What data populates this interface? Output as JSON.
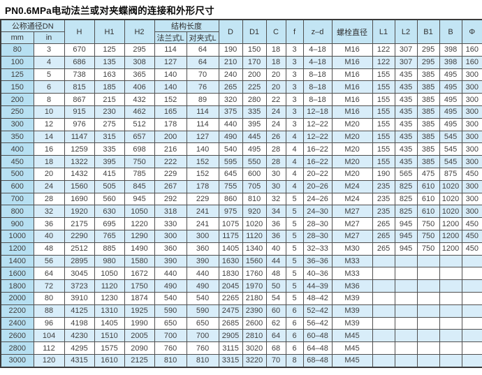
{
  "title": "PN0.6MPa电动法兰或对夹蝶阀的连接和外形尺寸",
  "colors": {
    "header_bg": "#c3e5f4",
    "dn_column_bg": "#b7e0f2",
    "stripe_row_bg": "#d8edf9",
    "border": "#4f4f4f"
  },
  "table": {
    "header_row1": [
      "公称通径DN",
      "H",
      "H1",
      "H2",
      "结构长度",
      "D",
      "D1",
      "C",
      "f",
      "z–d",
      "螺栓直径",
      "L1",
      "L2",
      "B1",
      "B",
      "Φ"
    ],
    "header_row2": [
      "mm",
      "in",
      "法兰式L",
      "对夹式L"
    ],
    "col_keys": [
      "dn-mm",
      "dn-in",
      "h",
      "h1",
      "h2",
      "l-flange",
      "l-wafer",
      "d",
      "d1",
      "c",
      "f",
      "z-d",
      "bolt-diameter",
      "l1",
      "l2",
      "b1",
      "b",
      "phi"
    ],
    "rows": [
      [
        "80",
        "3",
        "670",
        "125",
        "295",
        "114",
        "64",
        "190",
        "150",
        "18",
        "3",
        "4–18",
        "M16",
        "122",
        "307",
        "295",
        "398",
        "160"
      ],
      [
        "100",
        "4",
        "686",
        "135",
        "308",
        "127",
        "64",
        "210",
        "170",
        "18",
        "3",
        "4–18",
        "M16",
        "122",
        "307",
        "295",
        "398",
        "160"
      ],
      [
        "125",
        "5",
        "738",
        "163",
        "365",
        "140",
        "70",
        "240",
        "200",
        "20",
        "3",
        "8–18",
        "M16",
        "155",
        "435",
        "385",
        "495",
        "300"
      ],
      [
        "150",
        "6",
        "815",
        "185",
        "406",
        "140",
        "76",
        "265",
        "225",
        "20",
        "3",
        "8–18",
        "M16",
        "155",
        "435",
        "385",
        "495",
        "300"
      ],
      [
        "200",
        "8",
        "867",
        "215",
        "432",
        "152",
        "89",
        "320",
        "280",
        "22",
        "3",
        "8–18",
        "M16",
        "155",
        "435",
        "385",
        "495",
        "300"
      ],
      [
        "250",
        "10",
        "915",
        "230",
        "462",
        "165",
        "114",
        "375",
        "335",
        "24",
        "3",
        "12–18",
        "M16",
        "155",
        "435",
        "385",
        "495",
        "300"
      ],
      [
        "300",
        "12",
        "976",
        "275",
        "512",
        "178",
        "114",
        "440",
        "395",
        "24",
        "3",
        "12–22",
        "M20",
        "155",
        "435",
        "385",
        "495",
        "300"
      ],
      [
        "350",
        "14",
        "1147",
        "315",
        "657",
        "200",
        "127",
        "490",
        "445",
        "26",
        "4",
        "12–22",
        "M20",
        "155",
        "435",
        "385",
        "545",
        "300"
      ],
      [
        "400",
        "16",
        "1259",
        "335",
        "698",
        "216",
        "140",
        "540",
        "495",
        "28",
        "4",
        "16–22",
        "M20",
        "155",
        "435",
        "385",
        "545",
        "300"
      ],
      [
        "450",
        "18",
        "1322",
        "395",
        "750",
        "222",
        "152",
        "595",
        "550",
        "28",
        "4",
        "16–22",
        "M20",
        "155",
        "435",
        "385",
        "545",
        "300"
      ],
      [
        "500",
        "20",
        "1432",
        "415",
        "785",
        "229",
        "152",
        "645",
        "600",
        "30",
        "4",
        "20–22",
        "M20",
        "190",
        "565",
        "475",
        "875",
        "450"
      ],
      [
        "600",
        "24",
        "1560",
        "505",
        "845",
        "267",
        "178",
        "755",
        "705",
        "30",
        "4",
        "20–26",
        "M24",
        "235",
        "825",
        "610",
        "1020",
        "300"
      ],
      [
        "700",
        "28",
        "1690",
        "560",
        "945",
        "292",
        "229",
        "860",
        "810",
        "32",
        "5",
        "24–26",
        "M24",
        "235",
        "825",
        "610",
        "1020",
        "300"
      ],
      [
        "800",
        "32",
        "1920",
        "630",
        "1050",
        "318",
        "241",
        "975",
        "920",
        "34",
        "5",
        "24–30",
        "M27",
        "235",
        "825",
        "610",
        "1020",
        "300"
      ],
      [
        "900",
        "36",
        "2175",
        "695",
        "1220",
        "330",
        "241",
        "1075",
        "1020",
        "36",
        "5",
        "28–30",
        "M27",
        "265",
        "945",
        "750",
        "1200",
        "450"
      ],
      [
        "1000",
        "40",
        "2290",
        "765",
        "1290",
        "300",
        "300",
        "1175",
        "1120",
        "36",
        "5",
        "28–30",
        "M27",
        "265",
        "945",
        "750",
        "1200",
        "450"
      ],
      [
        "1200",
        "48",
        "2512",
        "885",
        "1490",
        "360",
        "360",
        "1405",
        "1340",
        "40",
        "5",
        "32–33",
        "M30",
        "265",
        "945",
        "750",
        "1200",
        "450"
      ],
      [
        "1400",
        "56",
        "2895",
        "980",
        "1580",
        "390",
        "390",
        "1630",
        "1560",
        "44",
        "5",
        "36–36",
        "M33",
        "",
        "",
        "",
        "",
        ""
      ],
      [
        "1600",
        "64",
        "3045",
        "1050",
        "1672",
        "440",
        "440",
        "1830",
        "1760",
        "48",
        "5",
        "40–36",
        "M33",
        "",
        "",
        "",
        "",
        ""
      ],
      [
        "1800",
        "72",
        "3723",
        "1120",
        "1750",
        "490",
        "490",
        "2045",
        "1970",
        "50",
        "5",
        "44–39",
        "M36",
        "",
        "",
        "",
        "",
        ""
      ],
      [
        "2000",
        "80",
        "3910",
        "1230",
        "1874",
        "540",
        "540",
        "2265",
        "2180",
        "54",
        "5",
        "48–42",
        "M39",
        "",
        "",
        "",
        "",
        ""
      ],
      [
        "2200",
        "88",
        "4125",
        "1310",
        "1925",
        "590",
        "590",
        "2475",
        "2390",
        "60",
        "6",
        "52–42",
        "M39",
        "",
        "",
        "",
        "",
        ""
      ],
      [
        "2400",
        "96",
        "4198",
        "1405",
        "1990",
        "650",
        "650",
        "2685",
        "2600",
        "62",
        "6",
        "56–42",
        "M39",
        "",
        "",
        "",
        "",
        ""
      ],
      [
        "2600",
        "104",
        "4230",
        "1510",
        "2005",
        "700",
        "700",
        "2905",
        "2810",
        "64",
        "6",
        "60–48",
        "M45",
        "",
        "",
        "",
        "",
        ""
      ],
      [
        "2800",
        "112",
        "4295",
        "1575",
        "2090",
        "760",
        "760",
        "3115",
        "3020",
        "68",
        "6",
        "64–48",
        "M45",
        "",
        "",
        "",
        "",
        ""
      ],
      [
        "3000",
        "120",
        "4315",
        "1610",
        "2125",
        "810",
        "810",
        "3315",
        "3220",
        "70",
        "8",
        "68–48",
        "M45",
        "",
        "",
        "",
        "",
        ""
      ]
    ]
  }
}
